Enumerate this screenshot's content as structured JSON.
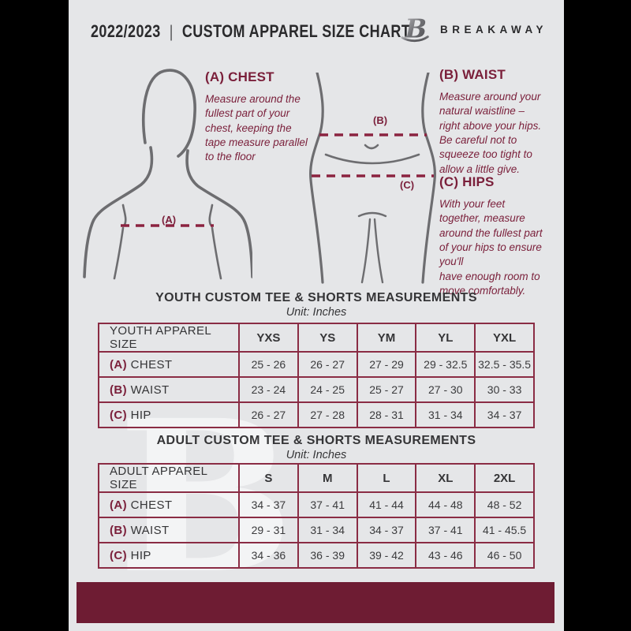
{
  "header": {
    "year": "2022/2023",
    "divider": "|",
    "title": "CUSTOM APPAREL SIZE CHART",
    "logo_letter": "B",
    "brand": "BREAKAWAY"
  },
  "watermark": {
    "letter": "B"
  },
  "instructions": {
    "chest": {
      "heading": "(A) CHEST",
      "body": "Measure around the\nfullest part of your\nchest, keeping the\ntape measure parallel\nto the floor"
    },
    "waist": {
      "heading": "(B) WAIST",
      "body": "Measure around your\nnatural waistline –\nright above your hips.\nBe careful not to\nsqueeze too tight to\nallow a little give."
    },
    "hips": {
      "heading": "(C) HIPS",
      "body": "With your feet\ntogether, measure\naround the fullest part\nof your hips to ensure\nyou'll\nhave enough room to\nmove comfortably."
    }
  },
  "diagram": {
    "chest_label": "(A)",
    "waist_label": "(B)",
    "hips_label": "(C)"
  },
  "tables": [
    {
      "title": "YOUTH CUSTOM TEE & SHORTS MEASUREMENTS",
      "unit": "Unit: Inches",
      "label_header": "YOUTH APPAREL SIZE",
      "columns": [
        "YXS",
        "YS",
        "YM",
        "YL",
        "YXL"
      ],
      "rows": [
        {
          "prefix": "(A)",
          "label": "CHEST",
          "values": [
            "25 - 26",
            "26 - 27",
            "27 - 29",
            "29 - 32.5",
            "32.5 - 35.5"
          ]
        },
        {
          "prefix": "(B)",
          "label": "WAIST",
          "values": [
            "23 - 24",
            "24 - 25",
            "25 - 27",
            "27 - 30",
            "30 - 33"
          ]
        },
        {
          "prefix": "(C)",
          "label": "HIP",
          "values": [
            "26 - 27",
            "27 - 28",
            "28 - 31",
            "31 - 34",
            "34 - 37"
          ]
        }
      ]
    },
    {
      "title": "ADULT CUSTOM TEE & SHORTS MEASUREMENTS",
      "unit": "Unit: Inches",
      "label_header": "ADULT APPAREL SIZE",
      "columns": [
        "S",
        "M",
        "L",
        "XL",
        "2XL"
      ],
      "rows": [
        {
          "prefix": "(A)",
          "label": "CHEST",
          "values": [
            "34 - 37",
            "37 - 41",
            "41 - 44",
            "44 - 48",
            "48 - 52"
          ]
        },
        {
          "prefix": "(B)",
          "label": "WAIST",
          "values": [
            "29 - 31",
            "31 - 34",
            "34 - 37",
            "37 - 41",
            "41 - 45.5"
          ]
        },
        {
          "prefix": "(C)",
          "label": "HIP",
          "values": [
            "34 - 36",
            "36 - 39",
            "39 - 42",
            "43 - 46",
            "46 - 50"
          ]
        }
      ]
    }
  ],
  "colors": {
    "accent": "#7a1f3a",
    "table_border": "#8a2c44",
    "footer_bar": "#6e1c33",
    "dash_line": "#8b2340",
    "text_dark": "#3b3b3d",
    "figure_stroke": "#6d6d70",
    "document_bg": "#e5e6e8",
    "page_bg": "#000000"
  }
}
